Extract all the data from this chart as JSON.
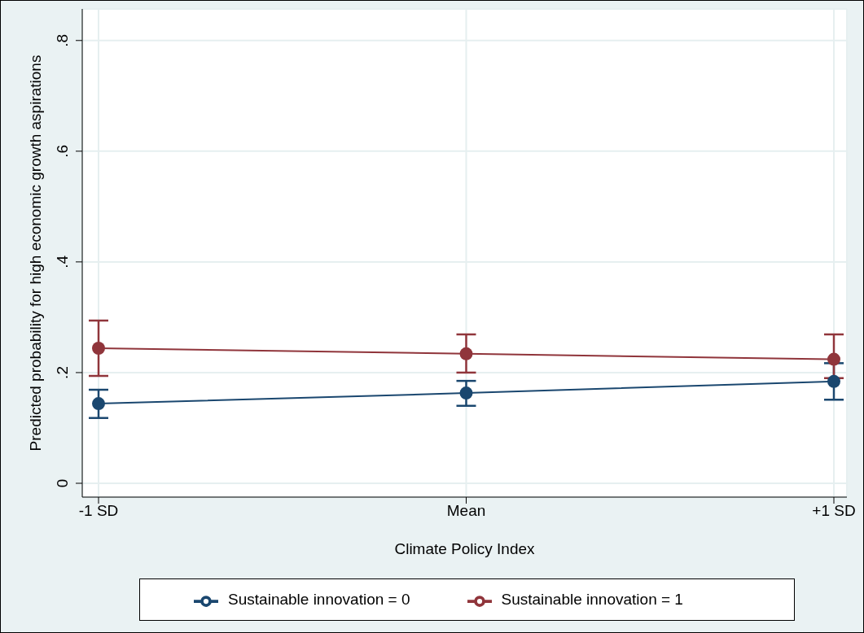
{
  "chart_data": {
    "type": "line",
    "xlabel": "Climate Policy Index",
    "ylabel": "Predicted probability for high economic growth aspirations",
    "categories": [
      "-1 SD",
      "Mean",
      "+1 SD"
    ],
    "series": [
      {
        "name": "Sustainable innovation = 0",
        "color": "#1a476f",
        "values": [
          0.144,
          0.163,
          0.184
        ],
        "errors": [
          [
            0.118,
            0.169
          ],
          [
            0.14,
            0.185
          ],
          [
            0.151,
            0.217
          ]
        ]
      },
      {
        "name": "Sustainable innovation = 1",
        "color": "#90353b",
        "values": [
          0.244,
          0.234,
          0.224
        ],
        "errors": [
          [
            0.194,
            0.294
          ],
          [
            0.2,
            0.269
          ],
          [
            0.19,
            0.269
          ]
        ]
      }
    ],
    "ylim": [
      -0.025,
      0.857
    ],
    "yticks": [
      {
        "value": 0,
        "label": "0"
      },
      {
        "value": 0.2,
        "label": ".2"
      },
      {
        "value": 0.4,
        "label": ".4"
      },
      {
        "value": 0.6,
        "label": ".6"
      },
      {
        "value": 0.8,
        "label": ".8"
      }
    ],
    "grid": true,
    "legend": "bottom",
    "marker": "circle",
    "line_style": "solid"
  }
}
